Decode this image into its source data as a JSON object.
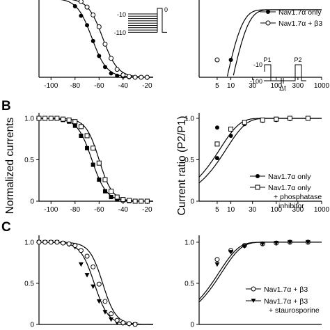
{
  "panel_labels": [
    "B",
    "C"
  ],
  "ylabel_left": "Normalized currents",
  "ylabel_right": "Current ratio (P2/P1)",
  "protocols": {
    "inactivation": {
      "v_hold": "-10",
      "v_min": "-110",
      "v_test": "0"
    },
    "recovery": {
      "v_step": "-10",
      "v_hold": "-100",
      "p1": "P1",
      "p2": "P2",
      "dt": "Δt"
    }
  },
  "chart_data": [
    {
      "id": "A-left",
      "type": "line",
      "title": "",
      "xlabel": "",
      "ylabel": "",
      "xlim": [
        -110,
        -15
      ],
      "ylim": [
        0,
        1.05
      ],
      "xticks": [
        -100,
        -80,
        -60,
        -40,
        -20
      ],
      "series": [
        {
          "marker": "filled-circle",
          "v_half": -66,
          "slope": 6.2,
          "x": [
            -80,
            -75,
            -70,
            -65,
            -60,
            -55,
            -50,
            -45,
            -40,
            -35,
            -30,
            -25,
            -20
          ],
          "y": [
            0.9,
            0.78,
            0.66,
            0.46,
            0.27,
            0.13,
            0.05,
            0.02,
            0.01,
            0,
            0,
            0,
            0
          ]
        },
        {
          "marker": "open-circle",
          "v_half": -57,
          "slope": 6.2,
          "x": [
            -80,
            -75,
            -70,
            -65,
            -60,
            -55,
            -50,
            -45,
            -40,
            -35,
            -30,
            -25,
            -20
          ],
          "y": [
            0.99,
            0.96,
            0.89,
            0.79,
            0.64,
            0.42,
            0.24,
            0.1,
            0.03,
            0.01,
            0,
            0,
            0
          ]
        }
      ]
    },
    {
      "id": "A-right",
      "type": "line",
      "xscale": "log",
      "title": "",
      "xlabel": "",
      "ylabel": "",
      "xlim": [
        2,
        1000
      ],
      "ylim": [
        0.4,
        1.05
      ],
      "xticks": [
        5,
        10,
        30,
        100,
        300,
        1000
      ],
      "legend": [
        "Nav1.7α only",
        "Nav1.7α + β3"
      ],
      "series": [
        {
          "name": "Nav1.7α only",
          "marker": "filled-circle",
          "tau": 8.5,
          "x": [
            5,
            10
          ],
          "y": [
            0.53,
            0.8
          ]
        },
        {
          "name": "Nav1.7α + β3",
          "marker": "open-circle",
          "tau": 6.3,
          "x": [
            5
          ],
          "y": [
            0.8
          ]
        }
      ]
    },
    {
      "id": "B-left",
      "type": "line",
      "title": "",
      "xlabel": "",
      "ylabel": "Normalized currents",
      "xlim": [
        -110,
        -15
      ],
      "ylim": [
        0,
        1.05
      ],
      "xticks": [
        -100,
        -80,
        -60,
        -40,
        -20
      ],
      "yticks": [
        0,
        0.5,
        1.0
      ],
      "series": [
        {
          "marker": "filled-square",
          "v_half": -66,
          "slope": 6,
          "x": [
            -110,
            -105,
            -100,
            -95,
            -90,
            -85,
            -80,
            -75,
            -70,
            -65,
            -60,
            -55,
            -50,
            -45,
            -40,
            -35,
            -30,
            -25,
            -20
          ],
          "y": [
            1.0,
            1.0,
            1.0,
            1.0,
            0.98,
            0.96,
            0.91,
            0.79,
            0.64,
            0.44,
            0.26,
            0.12,
            0.05,
            0.02,
            0.01,
            0,
            0,
            0,
            0
          ]
        },
        {
          "marker": "open-square",
          "v_half": -60,
          "slope": 5.5,
          "x": [
            -110,
            -105,
            -100,
            -95,
            -90,
            -85,
            -80,
            -75,
            -70,
            -65,
            -60,
            -55,
            -50,
            -45,
            -40,
            -35,
            -30,
            -25,
            -20
          ],
          "y": [
            1.0,
            1.0,
            1.0,
            1.0,
            0.99,
            0.98,
            0.96,
            0.9,
            0.79,
            0.64,
            0.46,
            0.26,
            0.12,
            0.05,
            0.02,
            0.01,
            0,
            0,
            0
          ]
        }
      ]
    },
    {
      "id": "B-right",
      "type": "line",
      "xscale": "log",
      "title": "",
      "xlabel": "",
      "ylabel": "Current ratio (P2/P1)",
      "xlim": [
        2,
        1000
      ],
      "ylim": [
        0,
        1.05
      ],
      "xticks": [
        5,
        10,
        30,
        100,
        300,
        1000
      ],
      "yticks": [
        0,
        0.5,
        1.0
      ],
      "legend": [
        "Nav1.7α only",
        "Nav1.7α only",
        "+ phosphatase",
        "inhibitor"
      ],
      "series": [
        {
          "name": "Nav1.7α only",
          "marker": "filled-circle",
          "tau": 8,
          "x": [
            5,
            10,
            20,
            50,
            100,
            200,
            500
          ],
          "y": [
            0.52,
            0.79,
            0.93,
            0.97,
            0.98,
            0.99,
            1.0
          ]
        },
        {
          "name": "Nav1.7α only + phosphatase inhibitor",
          "marker": "open-square",
          "tau": 5.8,
          "x": [
            5,
            10,
            20,
            50,
            100,
            200,
            500
          ],
          "y": [
            0.69,
            0.87,
            0.95,
            0.98,
            0.99,
            1.0,
            1.0
          ]
        }
      ]
    },
    {
      "id": "C-left",
      "type": "line",
      "title": "",
      "xlabel": "",
      "ylabel": "",
      "xlim": [
        -110,
        -15
      ],
      "ylim": [
        0,
        1.05
      ],
      "yticks": [
        0,
        0.5,
        1.0
      ],
      "series": [
        {
          "marker": "filled-triangle-down",
          "v_half": -64,
          "slope": 5.8,
          "x": [
            -110,
            -105,
            -100,
            -95,
            -90,
            -85,
            -80,
            -75,
            -70,
            -65,
            -60,
            -55,
            -50,
            -45,
            -40,
            -35,
            -30
          ],
          "y": [
            1.0,
            1.0,
            1.0,
            1.0,
            0.99,
            0.97,
            0.94,
            0.73,
            0.6,
            0.46,
            0.28,
            0.15,
            0.06,
            0.02,
            0.01,
            0,
            0
          ]
        },
        {
          "marker": "open-circle",
          "v_half": -57,
          "slope": 5.5,
          "x": [
            -110,
            -105,
            -100,
            -95,
            -90,
            -85,
            -80,
            -75,
            -70,
            -65,
            -60,
            -55,
            -50,
            -45,
            -40,
            -35,
            -30
          ],
          "y": [
            1.0,
            1.0,
            1.0,
            1.0,
            0.99,
            0.98,
            0.96,
            0.9,
            0.83,
            0.7,
            0.49,
            0.28,
            0.13,
            0.05,
            0.02,
            0.01,
            0
          ]
        }
      ]
    },
    {
      "id": "C-right",
      "type": "line",
      "xscale": "log",
      "title": "",
      "xlabel": "",
      "ylabel": "",
      "xlim": [
        2,
        1000
      ],
      "ylim": [
        0,
        1.05
      ],
      "yticks": [
        0,
        0.5,
        1.0
      ],
      "legend": [
        "Nav1.7α + β3",
        "Nav1.7α + β3",
        "+ staurosporine"
      ],
      "series": [
        {
          "name": "Nav1.7α + β3",
          "marker": "open-circle",
          "tau": 5.5,
          "x": [
            5,
            10,
            20,
            50,
            100,
            200,
            500
          ],
          "y": [
            0.79,
            0.9,
            0.96,
            0.98,
            0.99,
            1.0,
            1.0
          ]
        },
        {
          "name": "Nav1.7α + β3 + staurosporine",
          "marker": "filled-triangle-down",
          "tau": 6.3,
          "x": [
            5,
            10,
            20,
            50,
            100,
            200,
            500
          ],
          "y": [
            0.73,
            0.88,
            0.95,
            0.98,
            0.99,
            1.0,
            1.0
          ]
        }
      ]
    }
  ]
}
